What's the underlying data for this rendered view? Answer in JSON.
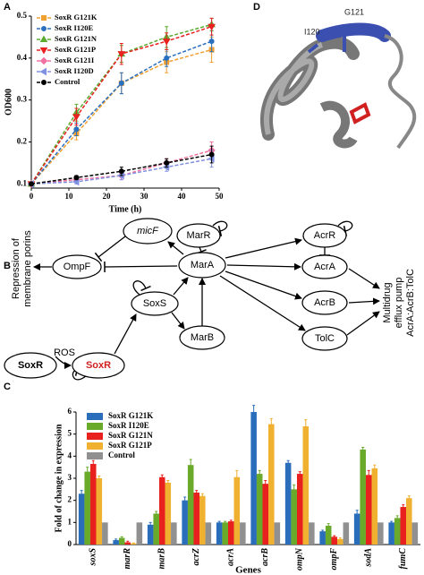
{
  "chart_data": [
    {
      "type": "line",
      "panel_label": "A",
      "x_label": "Time (h)",
      "y_label": "OD600",
      "x": [
        0,
        12,
        24,
        36,
        48
      ],
      "xlim": [
        0,
        50
      ],
      "xticks": [
        0,
        10,
        20,
        30,
        40,
        50
      ],
      "ylim": [
        0.09,
        0.5
      ],
      "yticks": [
        0.1,
        0.2,
        0.3,
        0.4,
        0.5
      ],
      "series": [
        {
          "name": "SoxR G121K",
          "color": "#f0a030",
          "marker": "square",
          "values": [
            0.1,
            0.22,
            0.34,
            0.39,
            0.42
          ],
          "errors": [
            0,
            0.015,
            0.025,
            0.025,
            0.03
          ]
        },
        {
          "name": "SoxR I120E",
          "color": "#2a70c0",
          "marker": "circle",
          "values": [
            0.1,
            0.23,
            0.34,
            0.4,
            0.44
          ],
          "errors": [
            0,
            0.015,
            0.025,
            0.02,
            0.025
          ]
        },
        {
          "name": "SoxR G121N",
          "color": "#5aab30",
          "marker": "triangle-up",
          "values": [
            0.1,
            0.27,
            0.41,
            0.45,
            0.48
          ],
          "errors": [
            0,
            0.02,
            0.02,
            0.025,
            0.015
          ]
        },
        {
          "name": "SoxR G121P",
          "color": "#e82020",
          "marker": "triangle-down",
          "values": [
            0.1,
            0.26,
            0.41,
            0.44,
            0.475
          ],
          "errors": [
            0,
            0.02,
            0.025,
            0.02,
            0.02
          ]
        },
        {
          "name": "SoxR G121I",
          "color": "#f070a0",
          "marker": "diamond",
          "values": [
            0.1,
            0.11,
            0.12,
            0.15,
            0.18
          ],
          "errors": [
            0,
            0.005,
            0.01,
            0.01,
            0.02
          ]
        },
        {
          "name": "SoxR I120D",
          "color": "#8090e0",
          "marker": "triangle-left",
          "values": [
            0.1,
            0.105,
            0.12,
            0.14,
            0.16
          ],
          "errors": [
            0,
            0.005,
            0.01,
            0.01,
            0.02
          ]
        },
        {
          "name": "Control",
          "color": "#000000",
          "marker": "circle",
          "values": [
            0.1,
            0.115,
            0.13,
            0.15,
            0.17
          ],
          "errors": [
            0,
            0.005,
            0.01,
            0.01,
            0.02
          ]
        }
      ]
    },
    {
      "type": "bar",
      "panel_label": "C",
      "x_label": "Genes",
      "y_label": "Fold of change in expression",
      "categories": [
        "soxS",
        "marR",
        "marB",
        "acrZ",
        "acrA",
        "acrB",
        "ompN",
        "ompF",
        "sodA",
        "fumC"
      ],
      "ylim": [
        0,
        6
      ],
      "yticks": [
        0,
        1,
        2,
        3,
        4,
        5,
        6
      ],
      "series": [
        {
          "name": "SoxR G121K",
          "color": "#2a6ebb",
          "values": [
            2.3,
            0.2,
            0.9,
            2.0,
            1.0,
            6.0,
            3.7,
            0.6,
            1.4,
            1.0
          ],
          "errors": [
            0.15,
            0.05,
            0.1,
            0.15,
            0.05,
            0.3,
            0.1,
            0.05,
            0.15,
            0.05
          ]
        },
        {
          "name": "SoxR I120E",
          "color": "#6aaa2a",
          "values": [
            3.3,
            0.3,
            1.4,
            3.6,
            1.0,
            3.2,
            2.5,
            0.85,
            4.3,
            1.2
          ],
          "errors": [
            0.2,
            0.05,
            0.1,
            0.25,
            0.05,
            0.15,
            0.2,
            0.1,
            0.1,
            0.1
          ]
        },
        {
          "name": "SoxR G121N",
          "color": "#e8201e",
          "values": [
            3.65,
            0.1,
            3.05,
            2.35,
            1.05,
            2.75,
            3.2,
            0.35,
            3.15,
            1.7
          ],
          "errors": [
            0.15,
            0.05,
            0.1,
            0.1,
            0.05,
            0.15,
            0.1,
            0.05,
            0.2,
            0.1
          ]
        },
        {
          "name": "SoxR G121P",
          "color": "#f0b030",
          "values": [
            3.0,
            0.05,
            2.8,
            2.2,
            3.05,
            5.45,
            5.35,
            0.25,
            3.45,
            2.1
          ],
          "errors": [
            0.1,
            0.02,
            0.1,
            0.1,
            0.3,
            0.25,
            0.3,
            0.05,
            0.15,
            0.1
          ]
        },
        {
          "name": "Control",
          "color": "#909090",
          "values": [
            1.0,
            1.0,
            1.0,
            1.0,
            1.0,
            1.0,
            1.0,
            1.0,
            1.0,
            1.0
          ],
          "errors": [
            0,
            0,
            0,
            0,
            0,
            0,
            0,
            0,
            0,
            0
          ]
        }
      ]
    }
  ],
  "diagram": {
    "panel_label": "B",
    "nodes": [
      "micF",
      "MarR",
      "AcrR",
      "OmpF",
      "MarA",
      "AcrA",
      "SoxS",
      "AcrB",
      "SoxR",
      "SoxR",
      "MarB",
      "TolC"
    ],
    "stimulus": "ROS",
    "output_left": [
      "Repression of",
      "membrane porins"
    ],
    "output_right": [
      "Multidrug",
      "efflux pump",
      "AcrA:AcrB:TolC"
    ]
  },
  "structure": {
    "panel_label": "D",
    "residues": [
      "I120",
      "G121"
    ]
  }
}
